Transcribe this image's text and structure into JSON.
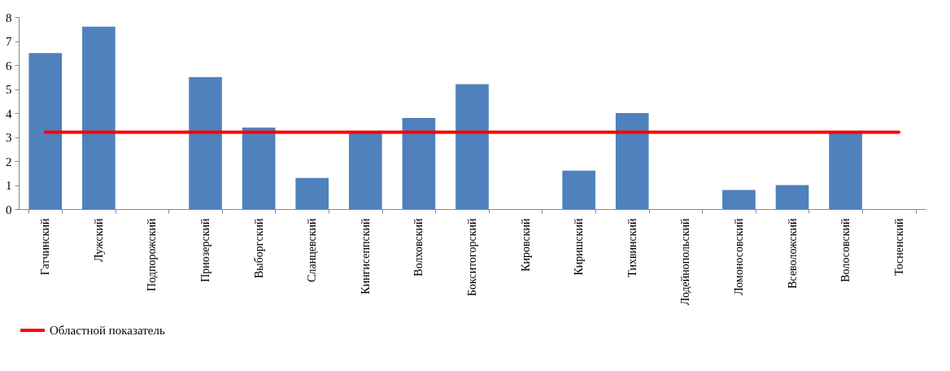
{
  "chart_data": {
    "type": "bar",
    "categories": [
      "Гатчинский",
      "Лужский",
      "Подпорожский",
      "Приозерский",
      "Выборгский",
      "Сланцевский",
      "Кингисеппский",
      "Волховский",
      "Бокситогорский",
      "Кировский",
      "Киришский",
      "Тихвинский",
      "Лодейнопольский",
      "Ломоносовский",
      "Всеволожский",
      "Волосовский",
      "Тосненский"
    ],
    "series": [
      {
        "color": "#4f81bd",
        "values": [
          6.5,
          7.6,
          0,
          5.5,
          3.4,
          1.3,
          3.2,
          3.8,
          5.2,
          0,
          1.6,
          4.0,
          0,
          0.8,
          1.0,
          3.2,
          0
        ]
      },
      {
        "type": "line",
        "name": "Областной показатель",
        "color": "#ff0000",
        "values": [
          3.2,
          3.2,
          3.2,
          3.2,
          3.2,
          3.2,
          3.2,
          3.2,
          3.2,
          3.2,
          3.2,
          3.2,
          3.2,
          3.2,
          3.2,
          3.2,
          3.2
        ]
      }
    ],
    "ylim": [
      0,
      8
    ],
    "yticks": [
      0,
      1,
      2,
      3,
      4,
      5,
      6,
      7,
      8
    ],
    "grid": false,
    "legend": "bottom",
    "marker": "none",
    "line_style": "solid"
  }
}
